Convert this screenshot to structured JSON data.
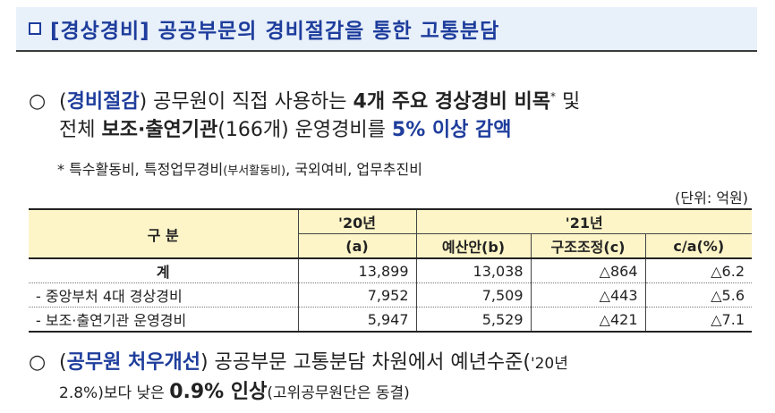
{
  "header": {
    "title": "[경상경비] 공공부문의 경비절감을 통한 고통분담"
  },
  "item1": {
    "bullet": "○",
    "tag": "경비절감",
    "line1_a": " 공무원이 직접 사용하는 ",
    "line1_b": "4개 주요 경상경비 비목",
    "line1_star": "*",
    "line1_c": " 및",
    "line2_a": "전체 ",
    "line2_b": "보조·출연기관",
    "line2_c": "(166개) 운영경비를 ",
    "line2_d": "5% 이상 감액"
  },
  "note": {
    "a": "* 특수활동비, 특정업무경비",
    "b": "(부서활동비)",
    "c": ", 국외여비, 업무추진비"
  },
  "unit": "(단위: 억원)",
  "table": {
    "h_gubun": "구 분",
    "h_20": "'20년",
    "h_20_sub": "(a)",
    "h_21": "'21년",
    "h_budget": "예산안(b)",
    "h_adjust": "구조조정(c)",
    "h_ratio": "c/a(%)",
    "rows": [
      {
        "label": "계",
        "a": "13,899",
        "b": "13,038",
        "c": "△864",
        "r": "△6.2"
      },
      {
        "label": "- 중앙부처 4대 경상경비",
        "a": "7,952",
        "b": "7,509",
        "c": "△443",
        "r": "△5.6"
      },
      {
        "label": "- 보조·출연기관 운영경비",
        "a": "5,947",
        "b": "5,529",
        "c": "△421",
        "r": "△7.1"
      }
    ]
  },
  "item2": {
    "bullet": "○",
    "tag": "공무원 처우개선",
    "line1_a": " 공공부문 고통분담 차원에서 예년수준(",
    "line1_b": "'20년",
    "line2_a": "2.8%)보다 낮은 ",
    "line2_b": "0.9% 인상",
    "line2_c": "(고위공무원단은 동결)"
  }
}
